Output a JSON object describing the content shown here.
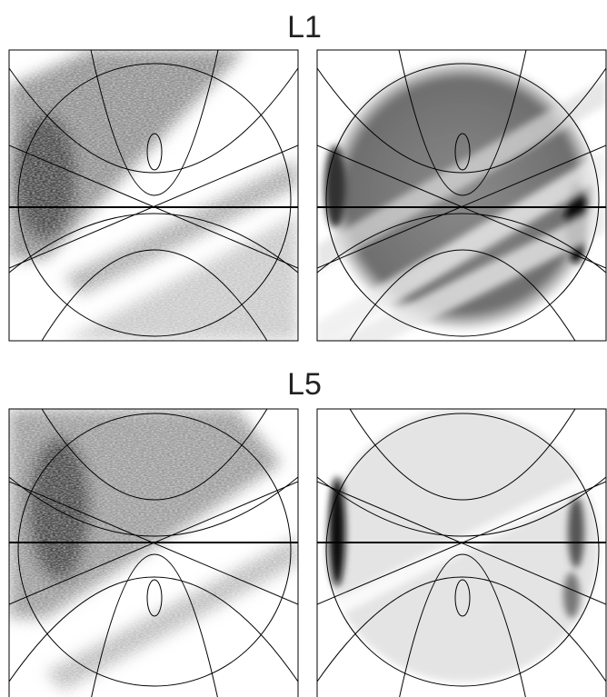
{
  "panels": [
    {
      "title": "L1"
    },
    {
      "title": "L5"
    }
  ]
}
